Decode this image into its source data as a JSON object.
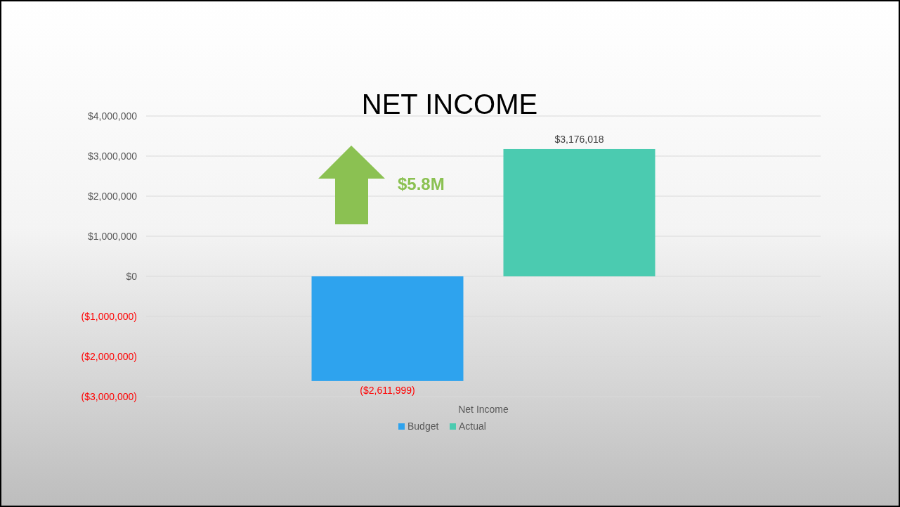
{
  "chart_data": {
    "type": "bar",
    "title": "NET INCOME",
    "categories": [
      "Net Income"
    ],
    "series": [
      {
        "name": "Budget",
        "color": "#2ea3ee",
        "values": [
          -2611999
        ],
        "value_labels": [
          "($2,611,999)"
        ]
      },
      {
        "name": "Actual",
        "color": "#4bcbb0",
        "values": [
          3176018
        ],
        "value_labels": [
          "$3,176,018"
        ]
      }
    ],
    "ylim": [
      -3000000,
      4000000
    ],
    "yticks": [
      {
        "value": -3000000,
        "label": "($3,000,000)"
      },
      {
        "value": -2000000,
        "label": "($2,000,000)"
      },
      {
        "value": -1000000,
        "label": "($1,000,000)"
      },
      {
        "value": 0,
        "label": "$0"
      },
      {
        "value": 1000000,
        "label": "$1,000,000"
      },
      {
        "value": 2000000,
        "label": "$2,000,000"
      },
      {
        "value": 3000000,
        "label": "$3,000,000"
      },
      {
        "value": 4000000,
        "label": "$4,000,000"
      }
    ],
    "grid": "y",
    "legend": "bottom",
    "annotations": [
      "$5.8M"
    ]
  }
}
